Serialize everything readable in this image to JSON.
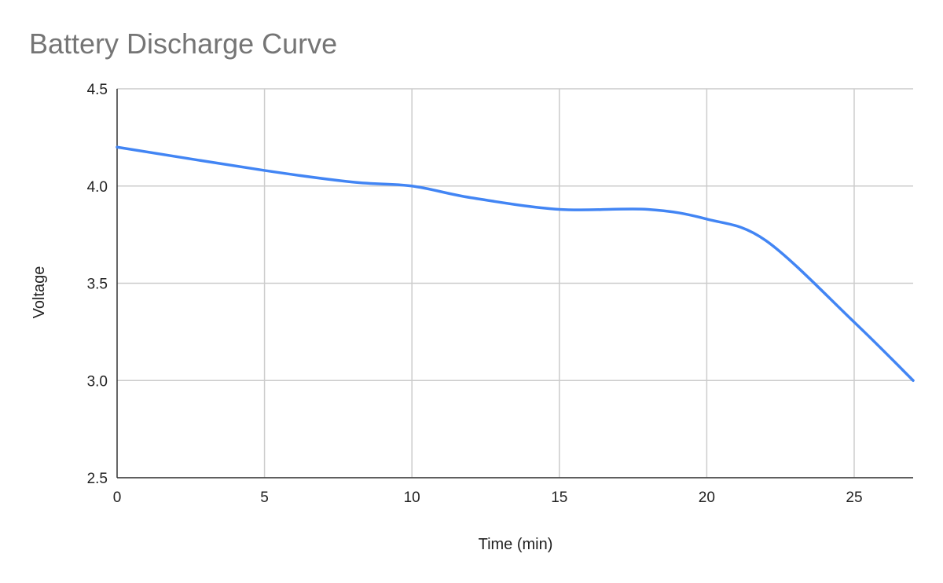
{
  "chart_data": {
    "type": "line",
    "title": "Battery Discharge Curve",
    "xlabel": "Time (min)",
    "ylabel": "Voltage",
    "xlim": [
      0,
      27
    ],
    "ylim": [
      2.5,
      4.5
    ],
    "x_ticks": [
      "0",
      "5",
      "10",
      "15",
      "20",
      "25"
    ],
    "y_ticks": [
      "2.5",
      "3.0",
      "3.5",
      "4.0",
      "4.5"
    ],
    "grid": true,
    "legend": "none",
    "series": [
      {
        "x": [
          0,
          5,
          8,
          10,
          12,
          15,
          18,
          20,
          22,
          25,
          27
        ],
        "values": [
          4.2,
          4.08,
          4.02,
          4.0,
          3.94,
          3.88,
          3.88,
          3.83,
          3.72,
          3.3,
          3.0
        ],
        "color": "#4285f4"
      }
    ]
  }
}
